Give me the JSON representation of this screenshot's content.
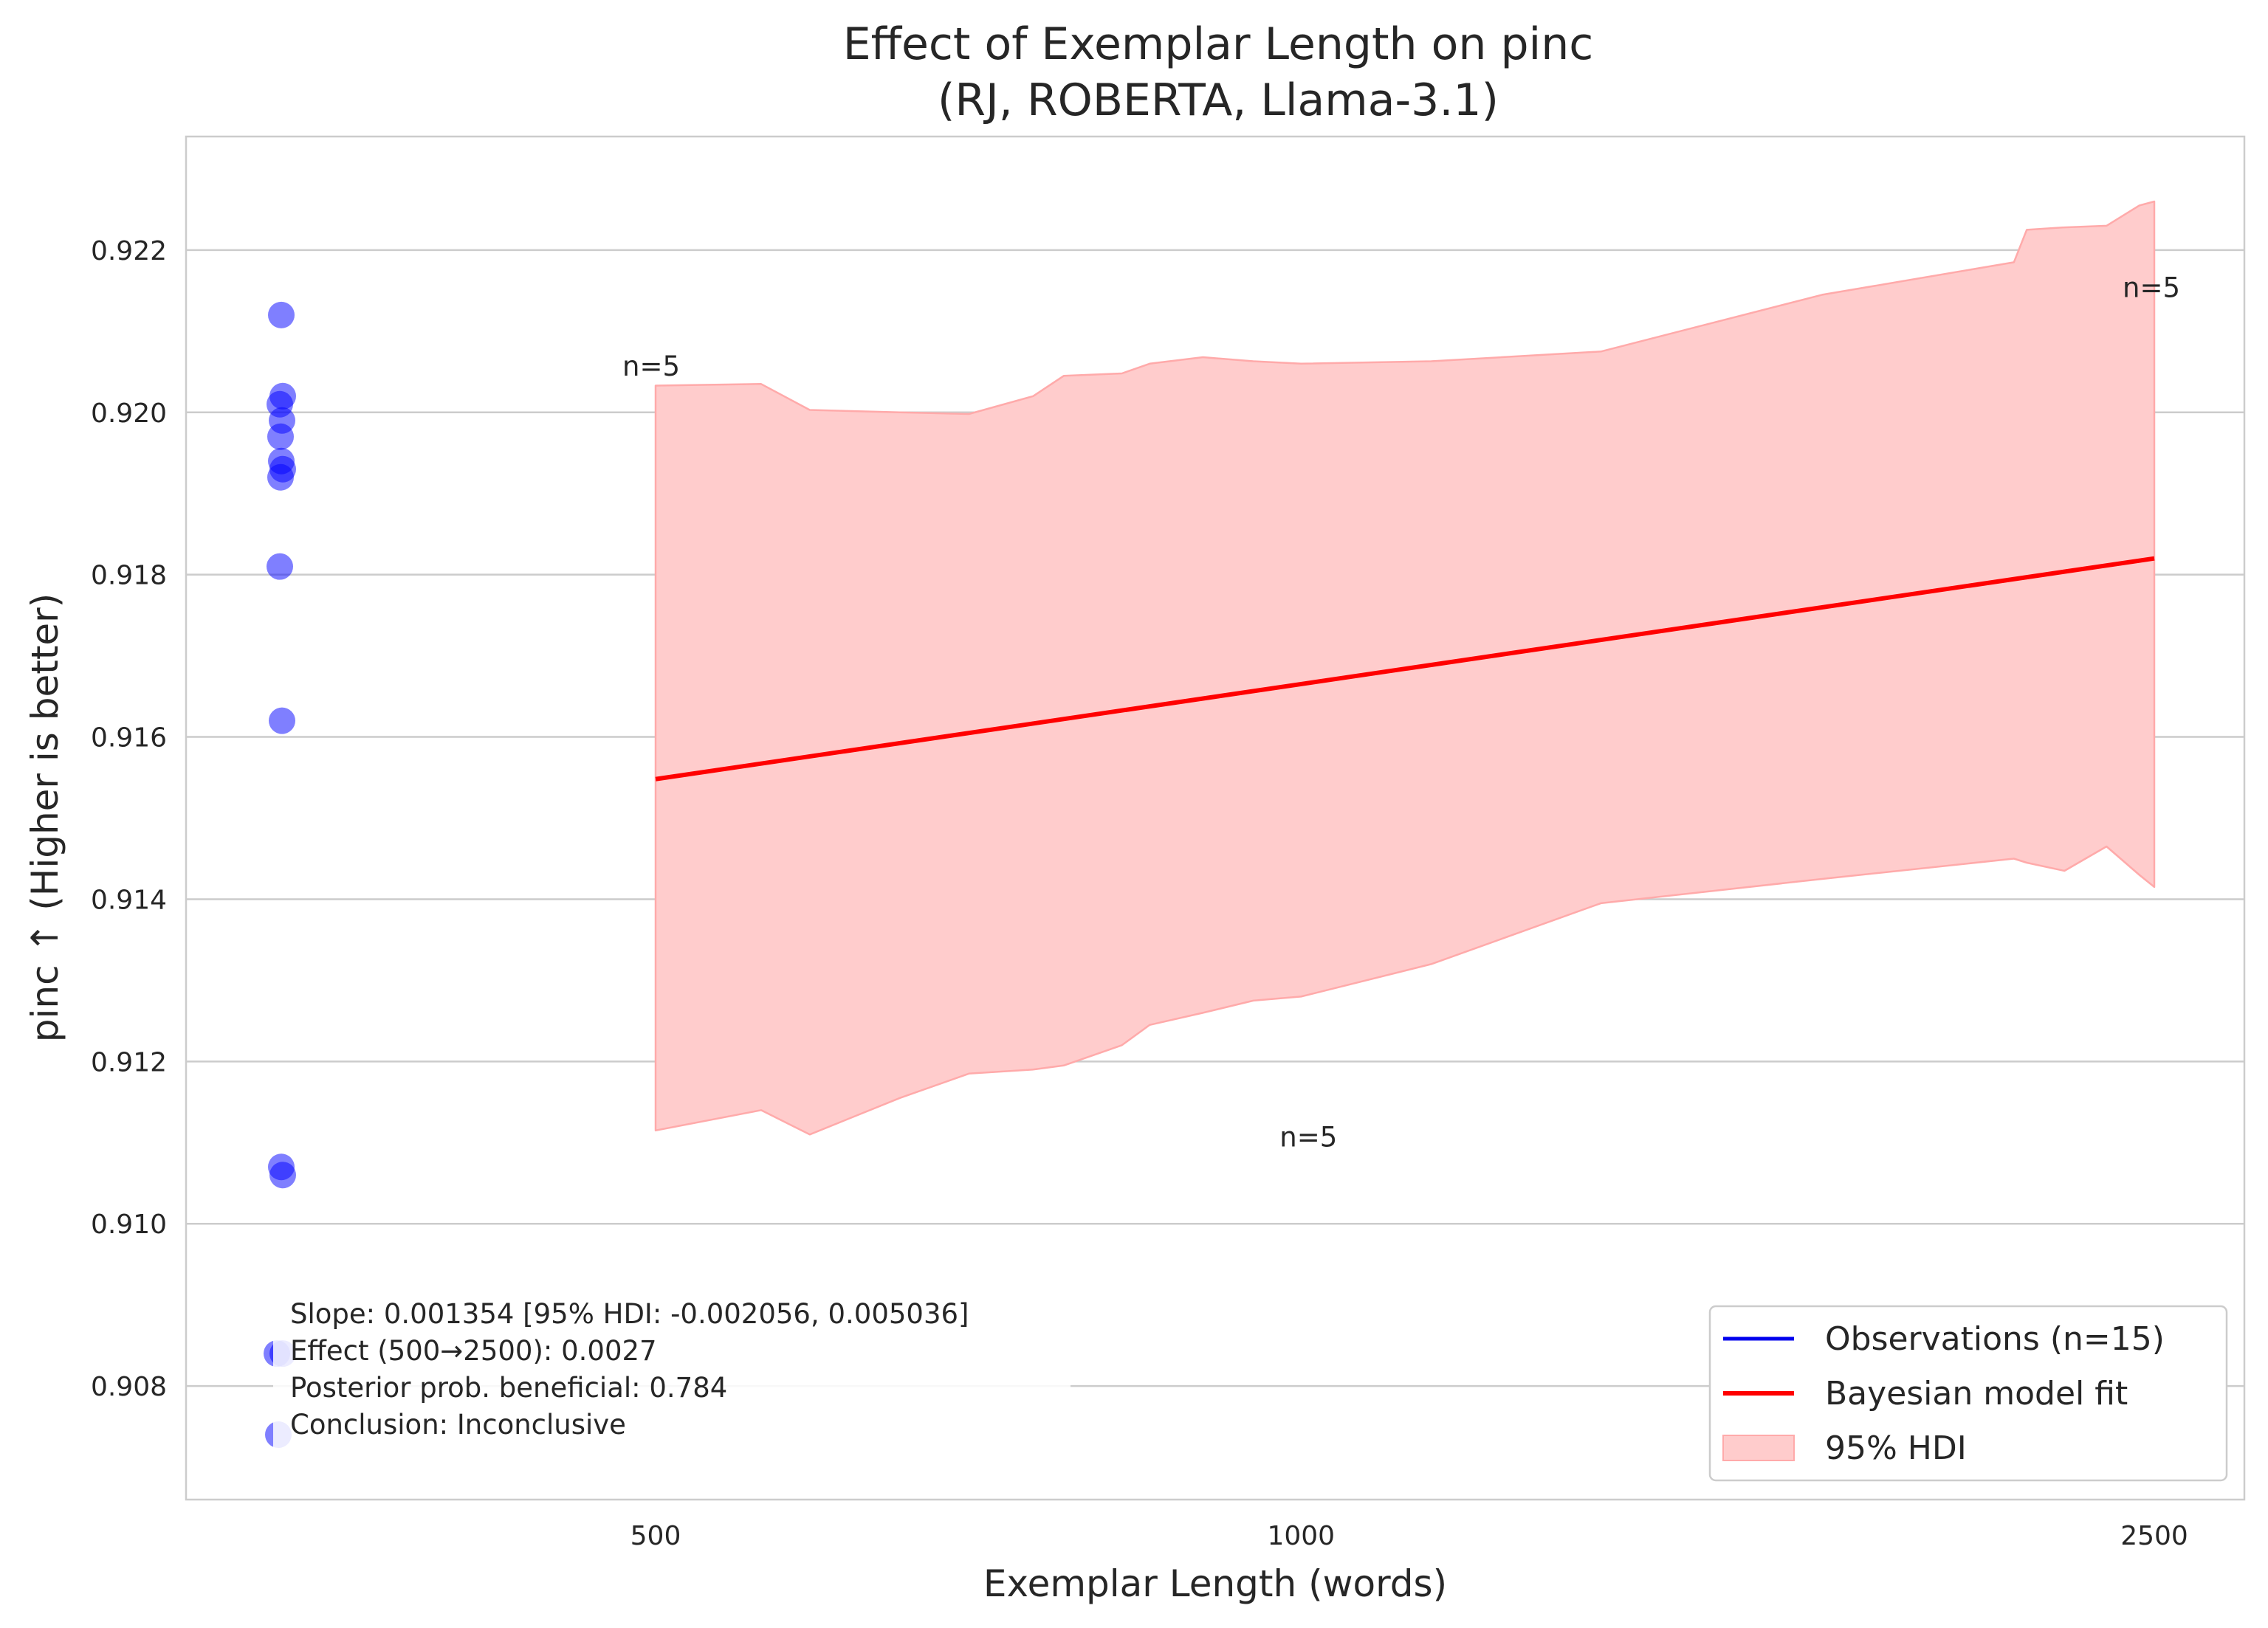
{
  "chart_data": {
    "type": "scatter",
    "title": "Effect of Exemplar Length on pinc",
    "subtitle": "(RJ, ROBERTA, Llama-3.1)",
    "xlabel": "Exemplar Length (words)",
    "ylabel": "pinc ↑ (Higher is better)",
    "x_scale": "log",
    "ylim": [
      0.9066,
      0.9234
    ],
    "y_ticks": [
      0.908,
      0.91,
      0.912,
      0.914,
      0.916,
      0.918,
      0.92,
      0.922
    ],
    "y_tick_labels": [
      "0.908",
      "0.910",
      "0.912",
      "0.914",
      "0.916",
      "0.918",
      "0.920",
      "0.922"
    ],
    "x_ticks": [
      500,
      1000,
      2500
    ],
    "x_tick_labels": [
      "500",
      "1000",
      "2500"
    ],
    "grid": "horizontal",
    "legend_position": "bottom-right",
    "colors": {
      "observations": "#0000ff",
      "fit": "#ff0000",
      "hdi": "#ffcccc"
    },
    "legend": [
      {
        "label": "Observations (n=15)",
        "kind": "line",
        "color": "#0000ee"
      },
      {
        "label": "Bayesian model fit",
        "kind": "line",
        "color": "#ff0000"
      },
      {
        "label": "95% HDI",
        "kind": "patch",
        "color": "#ffcccc"
      }
    ],
    "observations": [
      0.9212,
      0.9202,
      0.9201,
      0.9199,
      0.9197,
      0.9194,
      0.9193,
      0.9192,
      0.9181,
      0.9162,
      0.9107,
      0.9106,
      0.9084,
      0.9084,
      0.9074
    ],
    "fit": {
      "x": [
        500,
        2500
      ],
      "y": [
        0.91548,
        0.9182
      ]
    },
    "hdi": {
      "x": [
        500,
        560,
        590,
        650,
        700,
        750,
        775,
        825,
        850,
        900,
        950,
        1000,
        1150,
        1380,
        1750,
        2150,
        2180,
        2270,
        2375,
        2460,
        2500
      ],
      "lower": [
        0.91115,
        0.9114,
        0.9111,
        0.91155,
        0.91185,
        0.9119,
        0.91195,
        0.9122,
        0.91245,
        0.9126,
        0.91275,
        0.9128,
        0.9132,
        0.91395,
        0.91425,
        0.9145,
        0.91445,
        0.91435,
        0.91465,
        0.9143,
        0.91415
      ],
      "upper": [
        0.92033,
        0.92035,
        0.92003,
        0.92,
        0.91998,
        0.9202,
        0.92045,
        0.92048,
        0.9206,
        0.92068,
        0.92063,
        0.9206,
        0.92063,
        0.92075,
        0.92145,
        0.92185,
        0.92225,
        0.92228,
        0.9223,
        0.92255,
        0.9226
      ]
    },
    "annotations": [
      {
        "text": "n=5",
        "x": 500,
        "y": 0.92058
      },
      {
        "text": "n=5",
        "x": 1000,
        "y": 0.91108
      },
      {
        "text": "n=5",
        "x": 2500,
        "y": 0.92155
      }
    ],
    "stats_box": [
      "Slope: 0.001354 [95% HDI: -0.002056, 0.005036]",
      "Effect (500→2500): 0.0027",
      "Posterior prob. beneficial: 0.784",
      "Conclusion: Inconclusive"
    ]
  }
}
